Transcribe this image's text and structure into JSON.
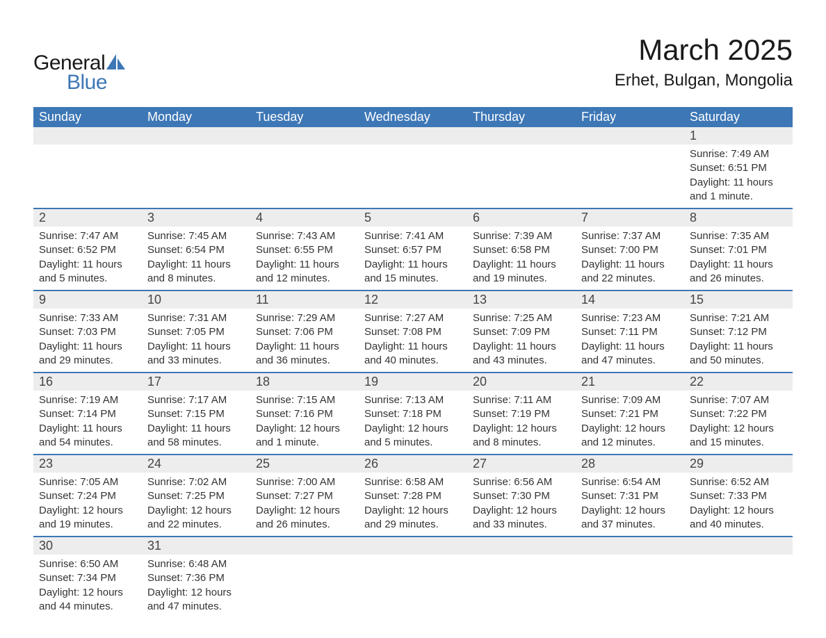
{
  "logo": {
    "general": "General",
    "blue": "Blue",
    "sail_color": "#3d77b6"
  },
  "title": "March 2025",
  "location": "Erhet, Bulgan, Mongolia",
  "colors": {
    "header_bg": "#3d77b6",
    "header_text": "#ffffff",
    "daynum_bg": "#ededed",
    "row_border": "#3d77b6",
    "text": "#333333",
    "background": "#ffffff"
  },
  "font": {
    "family": "Arial",
    "title_size": 42,
    "location_size": 24,
    "dayhead_size": 18,
    "daynum_size": 18,
    "detail_size": 15
  },
  "weekdays": [
    "Sunday",
    "Monday",
    "Tuesday",
    "Wednesday",
    "Thursday",
    "Friday",
    "Saturday"
  ],
  "weeks": [
    [
      null,
      null,
      null,
      null,
      null,
      null,
      {
        "n": "1",
        "sr": "7:49 AM",
        "ss": "6:51 PM",
        "dl": "11 hours and 1 minute."
      }
    ],
    [
      {
        "n": "2",
        "sr": "7:47 AM",
        "ss": "6:52 PM",
        "dl": "11 hours and 5 minutes."
      },
      {
        "n": "3",
        "sr": "7:45 AM",
        "ss": "6:54 PM",
        "dl": "11 hours and 8 minutes."
      },
      {
        "n": "4",
        "sr": "7:43 AM",
        "ss": "6:55 PM",
        "dl": "11 hours and 12 minutes."
      },
      {
        "n": "5",
        "sr": "7:41 AM",
        "ss": "6:57 PM",
        "dl": "11 hours and 15 minutes."
      },
      {
        "n": "6",
        "sr": "7:39 AM",
        "ss": "6:58 PM",
        "dl": "11 hours and 19 minutes."
      },
      {
        "n": "7",
        "sr": "7:37 AM",
        "ss": "7:00 PM",
        "dl": "11 hours and 22 minutes."
      },
      {
        "n": "8",
        "sr": "7:35 AM",
        "ss": "7:01 PM",
        "dl": "11 hours and 26 minutes."
      }
    ],
    [
      {
        "n": "9",
        "sr": "7:33 AM",
        "ss": "7:03 PM",
        "dl": "11 hours and 29 minutes."
      },
      {
        "n": "10",
        "sr": "7:31 AM",
        "ss": "7:05 PM",
        "dl": "11 hours and 33 minutes."
      },
      {
        "n": "11",
        "sr": "7:29 AM",
        "ss": "7:06 PM",
        "dl": "11 hours and 36 minutes."
      },
      {
        "n": "12",
        "sr": "7:27 AM",
        "ss": "7:08 PM",
        "dl": "11 hours and 40 minutes."
      },
      {
        "n": "13",
        "sr": "7:25 AM",
        "ss": "7:09 PM",
        "dl": "11 hours and 43 minutes."
      },
      {
        "n": "14",
        "sr": "7:23 AM",
        "ss": "7:11 PM",
        "dl": "11 hours and 47 minutes."
      },
      {
        "n": "15",
        "sr": "7:21 AM",
        "ss": "7:12 PM",
        "dl": "11 hours and 50 minutes."
      }
    ],
    [
      {
        "n": "16",
        "sr": "7:19 AM",
        "ss": "7:14 PM",
        "dl": "11 hours and 54 minutes."
      },
      {
        "n": "17",
        "sr": "7:17 AM",
        "ss": "7:15 PM",
        "dl": "11 hours and 58 minutes."
      },
      {
        "n": "18",
        "sr": "7:15 AM",
        "ss": "7:16 PM",
        "dl": "12 hours and 1 minute."
      },
      {
        "n": "19",
        "sr": "7:13 AM",
        "ss": "7:18 PM",
        "dl": "12 hours and 5 minutes."
      },
      {
        "n": "20",
        "sr": "7:11 AM",
        "ss": "7:19 PM",
        "dl": "12 hours and 8 minutes."
      },
      {
        "n": "21",
        "sr": "7:09 AM",
        "ss": "7:21 PM",
        "dl": "12 hours and 12 minutes."
      },
      {
        "n": "22",
        "sr": "7:07 AM",
        "ss": "7:22 PM",
        "dl": "12 hours and 15 minutes."
      }
    ],
    [
      {
        "n": "23",
        "sr": "7:05 AM",
        "ss": "7:24 PM",
        "dl": "12 hours and 19 minutes."
      },
      {
        "n": "24",
        "sr": "7:02 AM",
        "ss": "7:25 PM",
        "dl": "12 hours and 22 minutes."
      },
      {
        "n": "25",
        "sr": "7:00 AM",
        "ss": "7:27 PM",
        "dl": "12 hours and 26 minutes."
      },
      {
        "n": "26",
        "sr": "6:58 AM",
        "ss": "7:28 PM",
        "dl": "12 hours and 29 minutes."
      },
      {
        "n": "27",
        "sr": "6:56 AM",
        "ss": "7:30 PM",
        "dl": "12 hours and 33 minutes."
      },
      {
        "n": "28",
        "sr": "6:54 AM",
        "ss": "7:31 PM",
        "dl": "12 hours and 37 minutes."
      },
      {
        "n": "29",
        "sr": "6:52 AM",
        "ss": "7:33 PM",
        "dl": "12 hours and 40 minutes."
      }
    ],
    [
      {
        "n": "30",
        "sr": "6:50 AM",
        "ss": "7:34 PM",
        "dl": "12 hours and 44 minutes."
      },
      {
        "n": "31",
        "sr": "6:48 AM",
        "ss": "7:36 PM",
        "dl": "12 hours and 47 minutes."
      },
      null,
      null,
      null,
      null,
      null
    ]
  ],
  "labels": {
    "sunrise": "Sunrise: ",
    "sunset": "Sunset: ",
    "daylight": "Daylight: "
  }
}
